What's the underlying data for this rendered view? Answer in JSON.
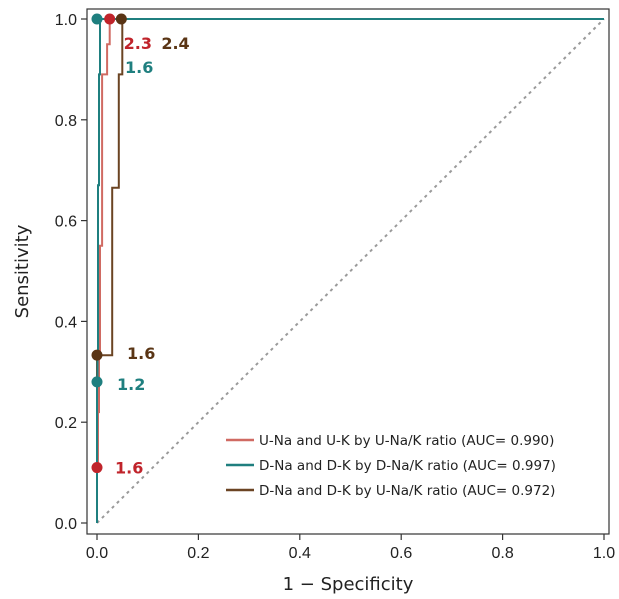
{
  "chart_data": {
    "type": "line",
    "xlabel": "1 − Specificity",
    "ylabel": "Sensitivity",
    "xlim": [
      0,
      1
    ],
    "ylim": [
      0,
      1
    ],
    "xticks": [
      "0.0",
      "0.2",
      "0.4",
      "0.6",
      "0.8",
      "1.0"
    ],
    "yticks": [
      "0.0",
      "0.2",
      "0.4",
      "0.6",
      "0.8",
      "1.0"
    ],
    "grid": false,
    "reference_line": "diagonal",
    "legend_position": "bottom-right",
    "series": [
      {
        "name": "U-Na and U-K by U-Na/K ratio (AUC= 0.990)",
        "color": "#d06a62",
        "x": [
          0,
          0,
          0.002,
          0.002,
          0.004,
          0.004,
          0.006,
          0.006,
          0.01,
          0.01,
          0.02,
          0.02,
          0.025,
          0.025,
          1
        ],
        "y": [
          0,
          0.11,
          0.11,
          0.22,
          0.22,
          0.33,
          0.33,
          0.55,
          0.55,
          0.89,
          0.89,
          0.95,
          0.95,
          1.0,
          1.0
        ]
      },
      {
        "name": "D-Na and D-K by D-Na/K ratio (AUC= 0.997)",
        "color": "#1f7f7f",
        "x": [
          0,
          0,
          0.001,
          0.001,
          0.002,
          0.002,
          0.004,
          0.004,
          0.006,
          0.006,
          1
        ],
        "y": [
          0,
          0.28,
          0.28,
          0.33,
          0.33,
          0.67,
          0.67,
          0.89,
          0.89,
          1.0,
          1.0
        ]
      },
      {
        "name": "D-Na and D-K by U-Na/K ratio (AUC= 0.972)",
        "color": "#6b4423",
        "x": [
          0,
          0,
          0.03,
          0.03,
          0.043,
          0.043,
          0.05,
          0.05,
          1
        ],
        "y": [
          0,
          0.333,
          0.333,
          0.665,
          0.665,
          0.89,
          0.89,
          1.0,
          1.0
        ]
      }
    ],
    "annotations": [
      {
        "text": "2.3",
        "x": 0.025,
        "y": 1.0,
        "color": "#c0242b"
      },
      {
        "text": "2.4",
        "x": 0.048,
        "y": 1.0,
        "color": "#5a3515"
      },
      {
        "text": "1.6",
        "x": 0.0,
        "y": 1.0,
        "color": "#1f7f7f"
      },
      {
        "text": "1.6",
        "x": 0.0,
        "y": 0.333,
        "color": "#5a3515"
      },
      {
        "text": "1.2",
        "x": 0.0,
        "y": 0.28,
        "color": "#1f7f7f"
      },
      {
        "text": "1.6",
        "x": 0.0,
        "y": 0.11,
        "color": "#c0242b"
      }
    ]
  }
}
